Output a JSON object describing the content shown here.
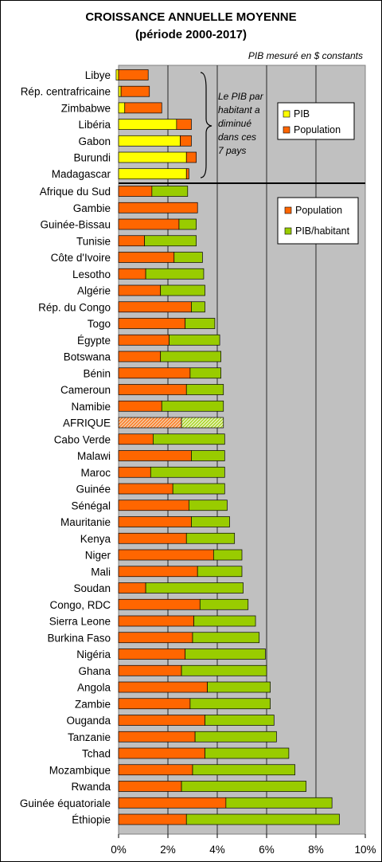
{
  "chart_data": {
    "type": "bar",
    "orientation": "horizontal",
    "stacked": true,
    "title": "CROISSANCE ANNUELLE MOYENNE",
    "subtitle": "(période 2000-2017)",
    "note": "PIB mesuré en $ constants",
    "xlim": [
      0,
      10
    ],
    "xticks": [
      "0%",
      "2%",
      "4%",
      "6%",
      "8%",
      "10%"
    ],
    "grid": true,
    "group_top": {
      "categories": [
        "Libye",
        "Rép. centrafricaine",
        "Zimbabwe",
        "Libéria",
        "Gabon",
        "Burundi",
        "Madagascar"
      ],
      "series": [
        {
          "name": "PIB",
          "color": "#ffff00",
          "values": [
            -0.1,
            0.1,
            0.25,
            2.35,
            2.5,
            2.75,
            2.75
          ]
        },
        {
          "name": "Population",
          "color": "#ff6600",
          "values": [
            1.2,
            1.15,
            1.5,
            0.6,
            0.45,
            0.4,
            0.1
          ]
        }
      ],
      "annotation": [
        "Le PIB par",
        "habitant a",
        "diminué",
        "dans ces",
        "7 pays"
      ],
      "legend": [
        "PIB",
        "Population"
      ]
    },
    "group_bottom": {
      "categories": [
        "Afrique du Sud",
        "Gambie",
        "Guinée-Bissau",
        "Tunisie",
        "Côte d'Ivoire",
        "Lesotho",
        "Algérie",
        "Rép. du Congo",
        "Togo",
        "Égypte",
        "Botswana",
        "Bénin",
        "Cameroun",
        "Namibie",
        "AFRIQUE",
        "Cabo Verde",
        "Malawi",
        "Maroc",
        "Guinée",
        "Sénégal",
        "Mauritanie",
        "Kenya",
        "Niger",
        "Mali",
        "Soudan",
        "Congo, RDC",
        "Sierra Leone",
        "Burkina Faso",
        "Nigéria",
        "Ghana",
        "Angola",
        "Zambie",
        "Ouganda",
        "Tanzanie",
        "Tchad",
        "Mozambique",
        "Rwanda",
        "Guinée équatoriale",
        "Éthiopie"
      ],
      "highlight": "AFRIQUE",
      "series": [
        {
          "name": "Population",
          "color": "#ff6600",
          "values": [
            1.35,
            3.2,
            2.45,
            1.05,
            2.25,
            1.1,
            1.7,
            2.95,
            2.7,
            2.05,
            1.7,
            2.9,
            2.75,
            1.75,
            2.55,
            1.4,
            2.95,
            1.3,
            2.2,
            2.85,
            2.95,
            2.75,
            3.85,
            3.2,
            1.1,
            3.3,
            3.05,
            3.0,
            2.7,
            2.55,
            3.6,
            2.9,
            3.5,
            3.1,
            3.5,
            3.0,
            2.55,
            4.35,
            2.75
          ]
        },
        {
          "name": "PIB/habitant",
          "color": "#99cc00",
          "values": [
            1.45,
            0.0,
            0.7,
            2.1,
            1.15,
            2.35,
            1.8,
            0.55,
            1.2,
            2.05,
            2.45,
            1.25,
            1.5,
            2.5,
            1.7,
            2.9,
            1.35,
            3.0,
            2.1,
            1.55,
            1.55,
            1.95,
            1.15,
            1.8,
            3.95,
            1.95,
            2.5,
            2.7,
            3.25,
            3.45,
            2.55,
            3.25,
            2.8,
            3.3,
            3.4,
            4.15,
            5.05,
            4.3,
            6.2
          ]
        }
      ],
      "legend": [
        "Population",
        "PIB/habitant"
      ]
    }
  }
}
